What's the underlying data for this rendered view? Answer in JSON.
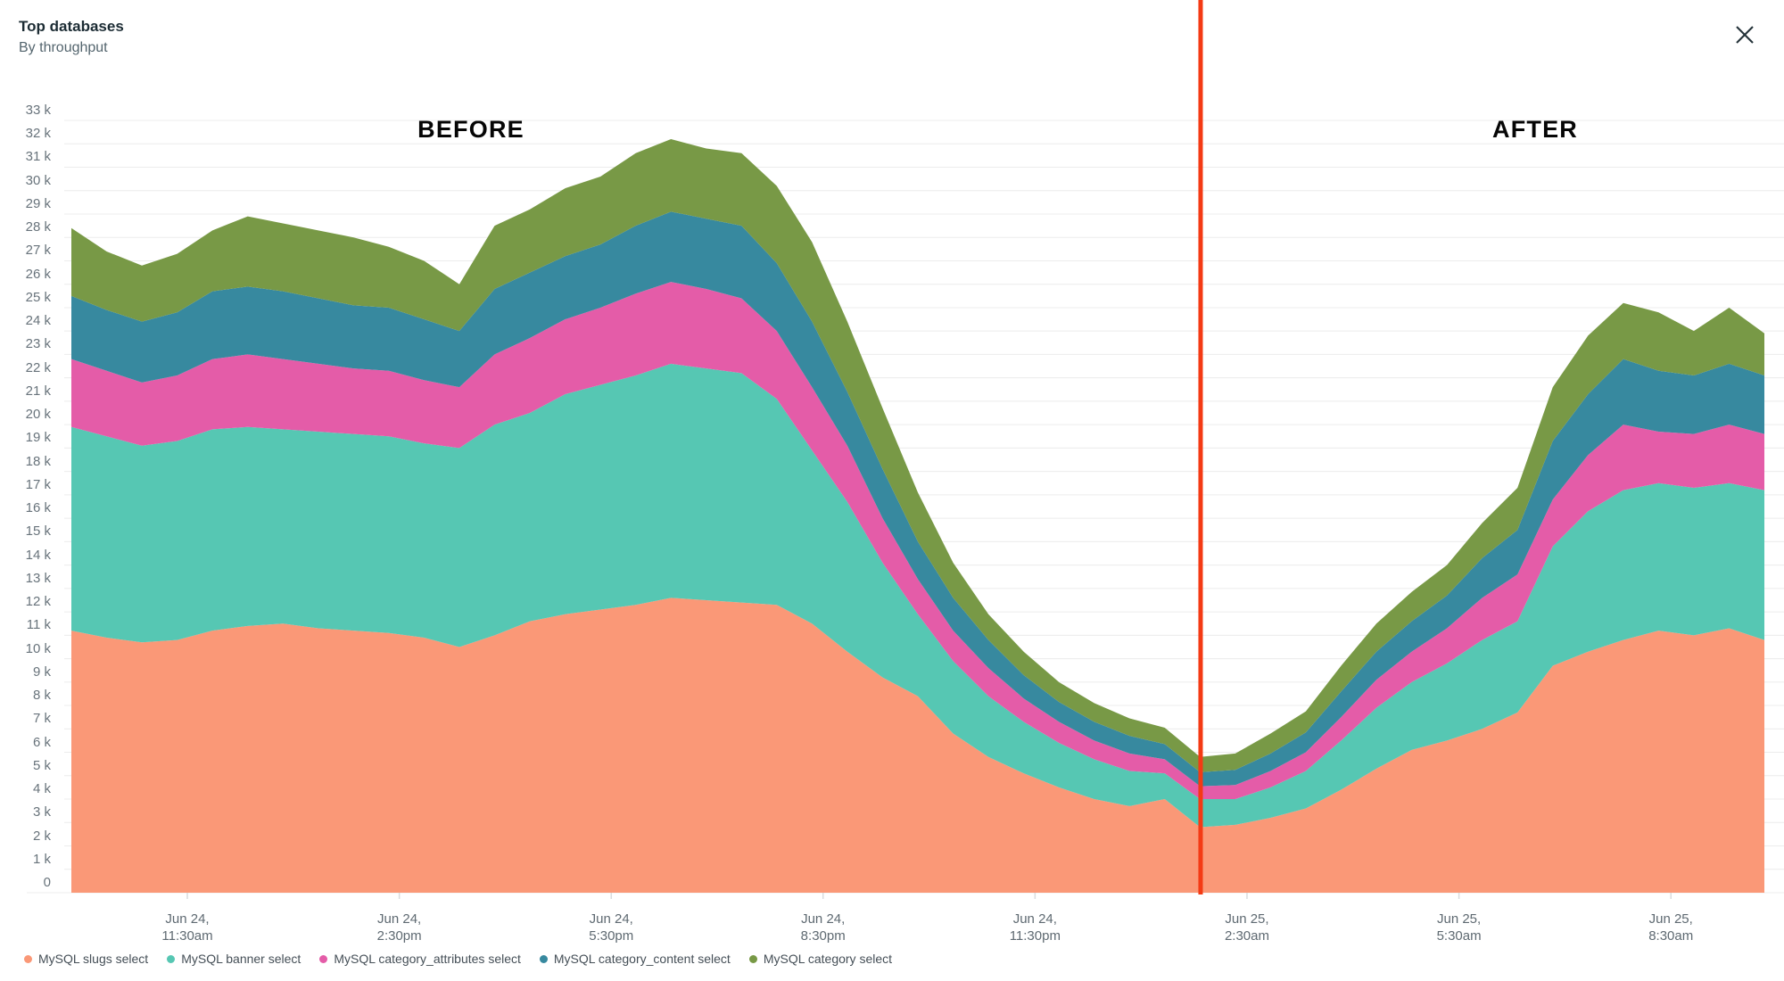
{
  "header": {
    "title": "Top databases",
    "subtitle": "By throughput"
  },
  "annotations": {
    "before": "BEFORE",
    "after": "AFTER"
  },
  "chart_data": {
    "type": "area",
    "stacked": true,
    "title": "Top databases by throughput",
    "ylim": [
      0,
      33000
    ],
    "y_tick_step": 1000,
    "grid": true,
    "legend_position": "bottom",
    "y_tick_labels": [
      "0",
      "1 k",
      "2 k",
      "3 k",
      "4 k",
      "5 k",
      "6 k",
      "7 k",
      "8 k",
      "9 k",
      "10 k",
      "11 k",
      "12 k",
      "13 k",
      "14 k",
      "15 k",
      "16 k",
      "17 k",
      "18 k",
      "19 k",
      "20 k",
      "21 k",
      "22 k",
      "23 k",
      "24 k",
      "25 k",
      "26 k",
      "27 k",
      "28 k",
      "29 k",
      "30 k",
      "31 k",
      "32 k",
      "33 k"
    ],
    "x_ticks": [
      {
        "frac": 0.0685,
        "line1": "Jun 24,",
        "line2": "11:30am"
      },
      {
        "frac": 0.1937,
        "line1": "Jun 24,",
        "line2": "2:30pm"
      },
      {
        "frac": 0.3189,
        "line1": "Jun 24,",
        "line2": "5:30pm"
      },
      {
        "frac": 0.444,
        "line1": "Jun 24,",
        "line2": "8:30pm"
      },
      {
        "frac": 0.5692,
        "line1": "Jun 24,",
        "line2": "11:30pm"
      },
      {
        "frac": 0.6944,
        "line1": "Jun 25,",
        "line2": "2:30am"
      },
      {
        "frac": 0.8196,
        "line1": "Jun 25,",
        "line2": "5:30am"
      },
      {
        "frac": 0.9448,
        "line1": "Jun 25,",
        "line2": "8:30am"
      }
    ],
    "x_start_time": "Jun 24, 10:00am",
    "x_interval_minutes": 30,
    "divider_frac": 0.667,
    "divider_color": "#f43a14",
    "series": [
      {
        "name": "MySQL slugs select",
        "color": "#fa9877",
        "values": [
          11200,
          10900,
          10700,
          10800,
          11200,
          11400,
          11500,
          11300,
          11200,
          11100,
          10900,
          10500,
          11000,
          11600,
          11900,
          12100,
          12300,
          12600,
          12500,
          12400,
          12300,
          11500,
          10300,
          9200,
          8400,
          6800,
          5800,
          5100,
          4500,
          4000,
          3700,
          4000,
          2800,
          2900,
          3200,
          3600,
          4400,
          5300,
          6100,
          6500,
          7000,
          7700,
          9700,
          10300,
          10800,
          11200,
          11000,
          11300,
          10800
        ]
      },
      {
        "name": "MySQL banner select",
        "color": "#56c7b3",
        "values": [
          8700,
          8600,
          8400,
          8500,
          8600,
          8500,
          8300,
          8400,
          8400,
          8400,
          8300,
          8500,
          9000,
          8900,
          9400,
          9600,
          9800,
          10000,
          9900,
          9800,
          8800,
          7400,
          6400,
          4900,
          3500,
          3100,
          2600,
          2200,
          1900,
          1700,
          1500,
          1100,
          1200,
          1100,
          1300,
          1600,
          2100,
          2600,
          2900,
          3300,
          3800,
          3900,
          5100,
          6000,
          6400,
          6300,
          6300,
          6200,
          6400
        ]
      },
      {
        "name": "MySQL category_attributes select",
        "color": "#e45ca8",
        "values": [
          2900,
          2800,
          2700,
          2800,
          3000,
          3100,
          3000,
          2900,
          2800,
          2800,
          2700,
          2600,
          3000,
          3200,
          3200,
          3300,
          3500,
          3500,
          3400,
          3200,
          2900,
          2700,
          2400,
          1900,
          1500,
          1300,
          1200,
          1000,
          900,
          800,
          750,
          600,
          550,
          600,
          700,
          800,
          1000,
          1200,
          1300,
          1500,
          1800,
          2000,
          2000,
          2400,
          2800,
          2200,
          2300,
          2500,
          2400
        ]
      },
      {
        "name": "MySQL category_content select",
        "color": "#37899f",
        "values": [
          2700,
          2600,
          2600,
          2700,
          2900,
          2900,
          2900,
          2800,
          2700,
          2700,
          2600,
          2400,
          2800,
          2800,
          2700,
          2700,
          2900,
          3000,
          3000,
          3100,
          2900,
          2800,
          2300,
          2100,
          1600,
          1400,
          1200,
          1000,
          850,
          800,
          750,
          650,
          600,
          650,
          750,
          850,
          1100,
          1200,
          1300,
          1400,
          1700,
          1900,
          2500,
          2600,
          2800,
          2600,
          2500,
          2600,
          2500
        ]
      },
      {
        "name": "MySQL category select",
        "color": "#789946",
        "values": [
          2900,
          2500,
          2400,
          2500,
          2600,
          3000,
          2900,
          2900,
          2900,
          2600,
          2500,
          2000,
          2700,
          2700,
          2900,
          2900,
          3100,
          3100,
          3000,
          3100,
          3300,
          3400,
          3000,
          2600,
          2100,
          1500,
          1100,
          1000,
          850,
          800,
          750,
          700,
          650,
          700,
          850,
          900,
          1100,
          1200,
          1250,
          1300,
          1500,
          1800,
          2300,
          2500,
          2400,
          2500,
          1900,
          2400,
          1800
        ]
      }
    ],
    "colors": {
      "grid": "#ececec",
      "tick_mark": "#d9dcde",
      "axis_text": "#68737b"
    }
  }
}
